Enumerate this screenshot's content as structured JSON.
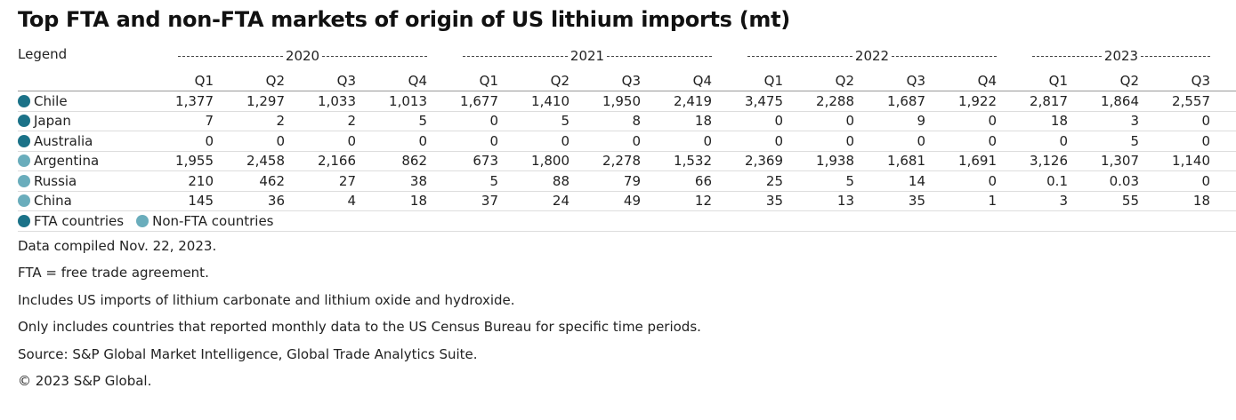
{
  "title": "Top FTA and non-FTA markets of origin of US lithium imports (mt)",
  "table": {
    "corner_label": "Legend",
    "years": [
      {
        "year": "2020",
        "quarters": [
          "Q1",
          "Q2",
          "Q3",
          "Q4"
        ]
      },
      {
        "year": "2021",
        "quarters": [
          "Q1",
          "Q2",
          "Q3",
          "Q4"
        ]
      },
      {
        "year": "2022",
        "quarters": [
          "Q1",
          "Q2",
          "Q3",
          "Q4"
        ]
      },
      {
        "year": "2023",
        "quarters": [
          "Q1",
          "Q2",
          "Q3"
        ]
      }
    ],
    "rows": [
      {
        "name": "Chile",
        "color": "#1b7288",
        "values": [
          "1,377",
          "1,297",
          "1,033",
          "1,013",
          "1,677",
          "1,410",
          "1,950",
          "2,419",
          "3,475",
          "2,288",
          "1,687",
          "1,922",
          "2,817",
          "1,864",
          "2,557"
        ]
      },
      {
        "name": "Japan",
        "color": "#1b7288",
        "values": [
          "7",
          "2",
          "2",
          "5",
          "0",
          "5",
          "8",
          "18",
          "0",
          "0",
          "9",
          "0",
          "18",
          "3",
          "0"
        ]
      },
      {
        "name": "Australia",
        "color": "#1b7288",
        "values": [
          "0",
          "0",
          "0",
          "0",
          "0",
          "0",
          "0",
          "0",
          "0",
          "0",
          "0",
          "0",
          "0",
          "5",
          "0"
        ]
      },
      {
        "name": "Argentina",
        "color": "#6aadbc",
        "values": [
          "1,955",
          "2,458",
          "2,166",
          "862",
          "673",
          "1,800",
          "2,278",
          "1,532",
          "2,369",
          "1,938",
          "1,681",
          "1,691",
          "3,126",
          "1,307",
          "1,140"
        ]
      },
      {
        "name": "Russia",
        "color": "#6aadbc",
        "values": [
          "210",
          "462",
          "27",
          "38",
          "5",
          "88",
          "79",
          "66",
          "25",
          "5",
          "14",
          "0",
          "0.1",
          "0.03",
          "0"
        ]
      },
      {
        "name": "China",
        "color": "#6aadbc",
        "values": [
          "145",
          "36",
          "4",
          "18",
          "37",
          "24",
          "49",
          "12",
          "35",
          "13",
          "35",
          "1",
          "3",
          "55",
          "18"
        ]
      }
    ],
    "legend": [
      {
        "label": "FTA countries",
        "color": "#1b7288"
      },
      {
        "label": "Non-FTA countries",
        "color": "#6aadbc"
      }
    ]
  },
  "notes": [
    "Data compiled Nov. 22, 2023.",
    "FTA = free trade agreement.",
    "Includes US imports of lithium carbonate and lithium oxide and hydroxide.",
    "Only includes countries that reported monthly data to the US Census Bureau for specific time periods.",
    "Source: S&P Global Market Intelligence, Global Trade Analytics Suite.",
    "© 2023 S&P Global."
  ]
}
